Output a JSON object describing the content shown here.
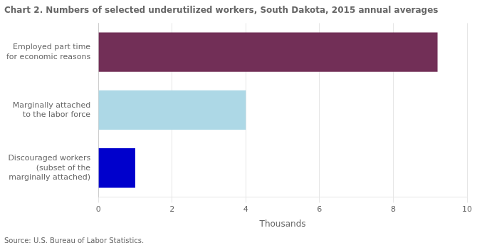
{
  "chart_data": {
    "type": "bar",
    "orientation": "horizontal",
    "title": "Chart 2. Numbers of selected underutilized workers, South Dakota, 2015 annual averages",
    "source": "Source: U.S. Bureau of Labor Statistics.",
    "categories": [
      "Discouraged workers\n(subset of the\nmarginally attached)",
      "Marginally attached\nto the labor force",
      "Employed part time\nfor economic reasons"
    ],
    "values": [
      1.0,
      4.0,
      9.2
    ],
    "colors": [
      "#0000CC",
      "#ADD8E6",
      "#722F57"
    ],
    "xlabel": "Thousands",
    "xlim": [
      0,
      10
    ],
    "xticks": [
      0,
      2,
      4,
      6,
      8,
      10
    ],
    "grid": true
  }
}
